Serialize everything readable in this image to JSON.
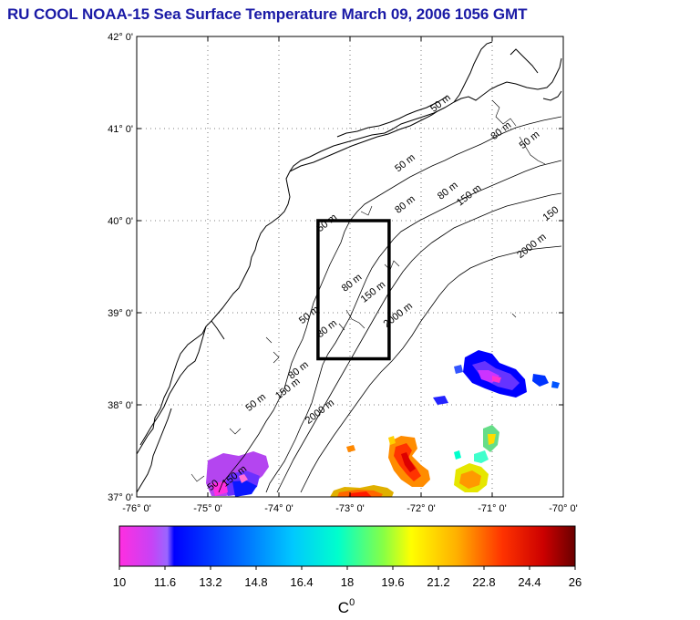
{
  "title": "RU COOL  NOAA-15 Sea Surface Temperature March 09, 2006 1056 GMT",
  "map": {
    "lon_range": [
      -76,
      -70
    ],
    "lat_range": [
      37,
      42
    ],
    "lon_ticks": [
      "-76° 0'",
      "-75° 0'",
      "-74° 0'",
      "-73° 0'",
      "-72° 0'",
      "-71° 0'",
      "-70° 0'"
    ],
    "lat_ticks": [
      "42° 0'",
      "41° 0'",
      "40° 0'",
      "39° 0'",
      "38° 0'",
      "37° 0'"
    ],
    "grid": "dotted",
    "study_box": {
      "lon": [
        -73.45,
        -72.45
      ],
      "lat": [
        38.5,
        40.0
      ]
    },
    "contour_labels": [
      {
        "text": "50 m",
        "lon": -71.7,
        "lat": 41.25
      },
      {
        "text": "50 m",
        "lon": -72.2,
        "lat": 40.6
      },
      {
        "text": "80 m",
        "lon": -71.6,
        "lat": 40.3
      },
      {
        "text": "150 m",
        "lon": -71.3,
        "lat": 40.25
      },
      {
        "text": "80 m",
        "lon": -72.2,
        "lat": 40.15
      },
      {
        "text": "150",
        "lon": -70.15,
        "lat": 40.05
      },
      {
        "text": "2000 m",
        "lon": -70.42,
        "lat": 39.7
      },
      {
        "text": "50 m",
        "lon": -73.3,
        "lat": 39.95
      },
      {
        "text": "80 m",
        "lon": -72.95,
        "lat": 39.3
      },
      {
        "text": "150 m",
        "lon": -72.65,
        "lat": 39.2
      },
      {
        "text": "2000 m",
        "lon": -72.3,
        "lat": 38.95
      },
      {
        "text": "50 m",
        "lon": -73.55,
        "lat": 38.95
      },
      {
        "text": "80 m",
        "lon": -73.3,
        "lat": 38.8
      },
      {
        "text": "80 m",
        "lon": -73.7,
        "lat": 38.35
      },
      {
        "text": "150 m",
        "lon": -73.85,
        "lat": 38.15
      },
      {
        "text": "50 m",
        "lon": -74.3,
        "lat": 38.0
      },
      {
        "text": "2000 m",
        "lon": -73.4,
        "lat": 37.9
      },
      {
        "text": "50 m",
        "lon": -70.45,
        "lat": 40.85
      },
      {
        "text": "80 m",
        "lon": -70.85,
        "lat": 40.95
      },
      {
        "text": "50",
        "lon": -74.9,
        "lat": 37.1
      },
      {
        "text": "150 m",
        "lon": -74.6,
        "lat": 37.2
      }
    ]
  },
  "colorbar": {
    "tick_labels": [
      "10",
      "11.6",
      "13.2",
      "14.8",
      "16.4",
      "18",
      "19.6",
      "21.2",
      "22.8",
      "24.4",
      "26"
    ],
    "unit_base": "C",
    "unit_sup": "0",
    "colors": [
      "#ff33cc",
      "#9955ff",
      "#0000ff",
      "#0066ff",
      "#00bfff",
      "#00ffcc",
      "#66ff66",
      "#ccff33",
      "#ffff00",
      "#ffbb00",
      "#ff6600",
      "#ff1a00",
      "#cc0000",
      "#700000"
    ]
  }
}
